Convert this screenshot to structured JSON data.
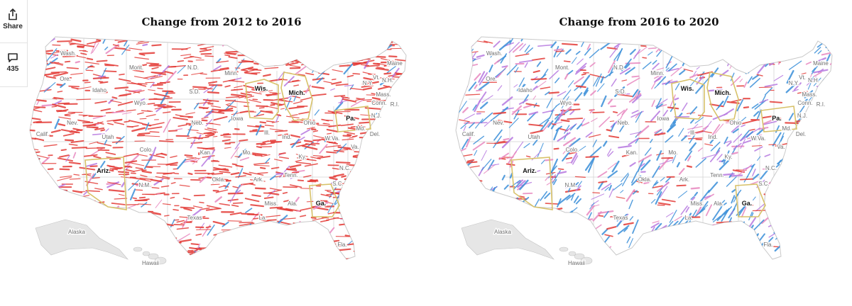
{
  "share": {
    "label": "Share",
    "icon": "share-icon"
  },
  "comments": {
    "count": "435",
    "icon": "comment-icon"
  },
  "colors": {
    "red": "#e33a36",
    "blue": "#3a8fd9",
    "purple": "#b779e0",
    "pink": "#e889c0",
    "land": "#ffffff",
    "border": "#d0d0d0",
    "outline": "#c9c9c9",
    "highlight": "#d8c26a",
    "inset": "#e6e6e6"
  },
  "maps": [
    {
      "title": "Change from 2012 to 2016",
      "dominant": "red",
      "labels": {
        "wash": "Wash.",
        "ore": "Ore.",
        "calif": "Calif.",
        "nev": "Nev.",
        "idaho": "Idaho",
        "mont": "Mont.",
        "wyo": "Wyo.",
        "utah": "Utah",
        "ariz": "Ariz.",
        "colo": "Colo.",
        "nm": "N.M.",
        "nd": "N.D.",
        "sd": "S.D.",
        "neb": "Neb.",
        "kan": "Kan.",
        "okla": "Okla.",
        "texas": "Texas",
        "minn": "Minn.",
        "iowa": "Iowa",
        "mo": "Mo.",
        "ark": "Ark.",
        "la": "La.",
        "wis": "Wis.",
        "mich": "Mich.",
        "ill": "Ill.",
        "ind": "Ind.",
        "ohio": "Ohio",
        "ky": "Ky.",
        "tenn": "Tenn.",
        "miss": "Miss.",
        "ala": "Ala.",
        "ga": "Ga.",
        "fla": "Fla.",
        "sc": "S.C.",
        "nc": "N.C.",
        "va": "Va.",
        "wva": "W.Va.",
        "pa": "Pa.",
        "ny": "N.Y.",
        "md": "Md.",
        "del": "Del.",
        "nj": "N.J.",
        "conn": "Conn.",
        "ri": "R.I.",
        "mass": "Mass.",
        "vt": "Vt.",
        "nh": "N.H.",
        "maine": "Maine",
        "alaska": "Alaska",
        "hawaii": "Hawaii"
      },
      "highlighted": [
        "Wis.",
        "Mich.",
        "Pa.",
        "Ariz.",
        "Ga."
      ]
    },
    {
      "title": "Change from 2016 to 2020",
      "dominant": "blue",
      "labels": {
        "wash": "Wash.",
        "ore": "Ore.",
        "calif": "Calif.",
        "nev": "Nev.",
        "idaho": "Idaho",
        "mont": "Mont.",
        "wyo": "Wyo.",
        "utah": "Utah",
        "ariz": "Ariz.",
        "colo": "Colo.",
        "nm": "N.M.",
        "nd": "N.D.",
        "sd": "S.D.",
        "neb": "Neb.",
        "kan": "Kan.",
        "okla": "Okla.",
        "texas": "Texas",
        "minn": "Minn.",
        "iowa": "Iowa",
        "mo": "Mo.",
        "ark": "Ark.",
        "la": "La.",
        "wis": "Wis.",
        "mich": "Mich.",
        "ill": "Ill.",
        "ind": "Ind.",
        "ohio": "Ohio",
        "ky": "Ky.",
        "tenn": "Tenn.",
        "miss": "Miss.",
        "ala": "Ala.",
        "ga": "Ga.",
        "fla": "Fla.",
        "sc": "S.C.",
        "nc": "N.C.",
        "va": "Va.",
        "wva": "W.Va.",
        "pa": "Pa.",
        "ny": "N.Y.",
        "md": "Md.",
        "del": "Del.",
        "nj": "N.J.",
        "conn": "Conn.",
        "ri": "R.I.",
        "mass": "Mass.",
        "vt": "Vt.",
        "nh": "N.H.",
        "maine": "Maine",
        "alaska": "Alaska",
        "hawaii": "Hawaii"
      },
      "highlighted": [
        "Wis.",
        "Mich.",
        "Pa.",
        "Ariz.",
        "Ga."
      ]
    }
  ]
}
